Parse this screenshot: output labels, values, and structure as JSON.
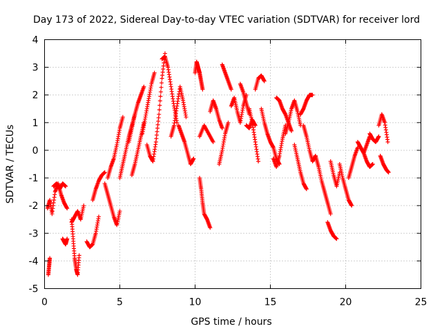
{
  "chart_data": {
    "type": "scatter",
    "title": "Day 173 of 2022, Sidereal Day-to-day VTEC variation (SDTVAR) for receiver lord",
    "xlabel": "GPS time / hours",
    "ylabel": "SDTVAR / TECUs",
    "xlim": [
      0,
      25
    ],
    "ylim": [
      -5,
      4
    ],
    "xticks": [
      "0",
      "5",
      "10",
      "15",
      "20",
      "25"
    ],
    "yticks": [
      "-5",
      "-4",
      "-3",
      "-2",
      "-1",
      "0",
      "1",
      "2",
      "3",
      "4"
    ],
    "grid": true,
    "marker": "plus",
    "series": [
      {
        "name": "SDTVAR",
        "color": "#ff0000",
        "segments": [
          {
            "x": [
              0.2,
              0.35,
              0.5,
              0.7,
              0.9,
              1.1,
              1.3,
              1.5
            ],
            "y": [
              -2.1,
              -1.8,
              -2.3,
              -1.5,
              -1.2,
              -1.6,
              -1.9,
              -2.1
            ]
          },
          {
            "x": [
              0.25,
              0.3,
              0.35
            ],
            "y": [
              -4.5,
              -4.2,
              -3.9
            ]
          },
          {
            "x": [
              0.6,
              0.8,
              1.0,
              1.2,
              1.4
            ],
            "y": [
              -1.3,
              -1.2,
              -1.4,
              -1.2,
              -1.3
            ]
          },
          {
            "x": [
              1.2,
              1.3,
              1.4,
              1.5
            ],
            "y": [
              -3.2,
              -3.3,
              -3.4,
              -3.2
            ]
          },
          {
            "x": [
              1.8,
              1.9,
              2.0,
              2.1,
              2.2,
              2.3
            ],
            "y": [
              -2.5,
              -3.2,
              -3.9,
              -4.3,
              -4.5,
              -3.8
            ]
          },
          {
            "x": [
              1.8,
              2.0,
              2.2,
              2.4,
              2.6
            ],
            "y": [
              -2.6,
              -2.4,
              -2.2,
              -2.5,
              -2.0
            ]
          },
          {
            "x": [
              2.8,
              3.0,
              3.2,
              3.4,
              3.6
            ],
            "y": [
              -3.3,
              -3.5,
              -3.4,
              -3.0,
              -2.4
            ]
          },
          {
            "x": [
              3.2,
              3.4,
              3.6,
              3.8,
              4.0
            ],
            "y": [
              -1.8,
              -1.4,
              -1.1,
              -0.9,
              -0.8
            ]
          },
          {
            "x": [
              4.0,
              4.2,
              4.4,
              4.6,
              4.8,
              5.0
            ],
            "y": [
              -1.2,
              -1.6,
              -2.0,
              -2.4,
              -2.7,
              -2.2
            ]
          },
          {
            "x": [
              4.2,
              4.4,
              4.6,
              4.8,
              5.0,
              5.2
            ],
            "y": [
              -1.0,
              -0.6,
              -0.3,
              0.2,
              0.8,
              1.2
            ]
          },
          {
            "x": [
              5.0,
              5.2,
              5.4,
              5.6,
              5.8,
              6.0
            ],
            "y": [
              -1.0,
              -0.5,
              0.0,
              0.5,
              0.9,
              1.3
            ]
          },
          {
            "x": [
              5.6,
              5.8,
              6.0,
              6.2,
              6.4,
              6.6
            ],
            "y": [
              0.3,
              0.8,
              1.3,
              1.7,
              2.0,
              2.3
            ]
          },
          {
            "x": [
              5.8,
              6.0,
              6.2,
              6.4,
              6.6
            ],
            "y": [
              -0.9,
              -0.5,
              0.0,
              0.5,
              1.0
            ]
          },
          {
            "x": [
              6.5,
              6.7,
              6.9,
              7.1,
              7.3
            ],
            "y": [
              0.6,
              1.2,
              1.8,
              2.4,
              2.8
            ]
          },
          {
            "x": [
              6.8,
              7.0,
              7.2,
              7.4,
              7.6,
              7.8,
              8.0
            ],
            "y": [
              0.2,
              -0.2,
              -0.4,
              0.3,
              1.3,
              2.6,
              3.5
            ]
          },
          {
            "x": [
              7.8,
              8.0,
              8.2,
              8.4,
              8.6,
              8.8
            ],
            "y": [
              3.3,
              3.4,
              3.0,
              2.3,
              1.6,
              1.0
            ]
          },
          {
            "x": [
              8.4,
              8.6,
              8.8,
              9.0,
              9.2,
              9.4
            ],
            "y": [
              0.5,
              0.9,
              1.6,
              2.3,
              1.8,
              1.2
            ]
          },
          {
            "x": [
              8.9,
              9.1,
              9.3,
              9.5,
              9.7,
              9.9
            ],
            "y": [
              0.9,
              0.6,
              0.3,
              -0.1,
              -0.5,
              -0.3
            ]
          },
          {
            "x": [
              10.0,
              10.1,
              10.2,
              10.3,
              10.4,
              10.5
            ],
            "y": [
              2.8,
              3.2,
              3.0,
              2.8,
              2.5,
              2.2
            ]
          },
          {
            "x": [
              10.3,
              10.4,
              10.5,
              10.6,
              10.8,
              11.0
            ],
            "y": [
              -1.0,
              -1.4,
              -1.9,
              -2.3,
              -2.5,
              -2.8
            ]
          },
          {
            "x": [
              10.3,
              10.6,
              10.9,
              11.2
            ],
            "y": [
              0.5,
              0.9,
              0.6,
              0.3
            ]
          },
          {
            "x": [
              11.0,
              11.2,
              11.4,
              11.6,
              11.8
            ],
            "y": [
              1.4,
              1.8,
              1.5,
              1.1,
              0.8
            ]
          },
          {
            "x": [
              11.6,
              11.8,
              12.0,
              12.2
            ],
            "y": [
              -0.5,
              0.0,
              0.6,
              1.0
            ]
          },
          {
            "x": [
              11.8,
              12.0,
              12.2,
              12.4
            ],
            "y": [
              3.1,
              2.8,
              2.5,
              2.2
            ]
          },
          {
            "x": [
              12.4,
              12.6,
              12.8,
              13.0,
              13.2,
              13.4
            ],
            "y": [
              1.6,
              1.9,
              1.4,
              1.0,
              1.6,
              2.0
            ]
          },
          {
            "x": [
              13.0,
              13.2,
              13.4,
              13.6
            ],
            "y": [
              2.4,
              2.1,
              1.7,
              1.3
            ]
          },
          {
            "x": [
              13.6,
              13.8,
              14.0,
              14.2
            ],
            "y": [
              1.5,
              1.0,
              0.3,
              -0.4
            ]
          },
          {
            "x": [
              13.4,
              13.6,
              13.8,
              14.0
            ],
            "y": [
              0.9,
              0.8,
              1.1,
              0.9
            ]
          },
          {
            "x": [
              14.0,
              14.2,
              14.4,
              14.6
            ],
            "y": [
              2.2,
              2.6,
              2.7,
              2.5
            ]
          },
          {
            "x": [
              14.4,
              14.6,
              14.8,
              15.0,
              15.2,
              15.4,
              15.6
            ],
            "y": [
              1.5,
              1.0,
              0.6,
              0.3,
              0.1,
              -0.3,
              -0.5
            ]
          },
          {
            "x": [
              15.2,
              15.4,
              15.6,
              15.8,
              16.0
            ],
            "y": [
              -0.3,
              -0.6,
              -0.2,
              0.4,
              0.9
            ]
          },
          {
            "x": [
              15.4,
              15.6,
              15.8,
              16.0,
              16.2,
              16.4
            ],
            "y": [
              1.9,
              1.8,
              1.5,
              1.3,
              1.0,
              0.7
            ]
          },
          {
            "x": [
              16.0,
              16.2,
              16.4,
              16.6,
              16.8,
              17.0
            ],
            "y": [
              0.6,
              1.0,
              1.5,
              1.8,
              1.4,
              0.9
            ]
          },
          {
            "x": [
              16.6,
              16.8,
              17.0,
              17.2,
              17.4
            ],
            "y": [
              0.2,
              -0.3,
              -0.8,
              -1.2,
              -1.4
            ]
          },
          {
            "x": [
              17.0,
              17.2,
              17.4,
              17.6,
              17.8
            ],
            "y": [
              1.3,
              1.5,
              1.8,
              2.0,
              2.0
            ]
          },
          {
            "x": [
              17.2,
              17.4,
              17.6,
              17.8,
              18.0
            ],
            "y": [
              0.9,
              0.5,
              0.0,
              -0.4,
              -0.2
            ]
          },
          {
            "x": [
              18.0,
              18.2,
              18.4,
              18.6,
              18.8,
              19.0
            ],
            "y": [
              -0.2,
              -0.6,
              -1.1,
              -1.5,
              -1.9,
              -2.3
            ]
          },
          {
            "x": [
              18.8,
              19.0,
              19.2,
              19.4
            ],
            "y": [
              -2.6,
              -2.9,
              -3.1,
              -3.2
            ]
          },
          {
            "x": [
              19.0,
              19.2,
              19.4,
              19.6
            ],
            "y": [
              -0.4,
              -0.9,
              -1.3,
              -0.8
            ]
          },
          {
            "x": [
              19.6,
              19.8,
              20.0,
              20.2,
              20.4
            ],
            "y": [
              -0.5,
              -1.0,
              -1.4,
              -1.8,
              -2.0
            ]
          },
          {
            "x": [
              20.2,
              20.4,
              20.6,
              20.8
            ],
            "y": [
              -1.0,
              -0.6,
              -0.2,
              0.1
            ]
          },
          {
            "x": [
              20.8,
              21.0,
              21.2,
              21.4,
              21.6
            ],
            "y": [
              0.3,
              0.1,
              -0.1,
              0.2,
              0.5
            ]
          },
          {
            "x": [
              21.2,
              21.4,
              21.6,
              21.8
            ],
            "y": [
              -0.1,
              -0.4,
              -0.6,
              -0.5
            ]
          },
          {
            "x": [
              21.6,
              21.8,
              22.0,
              22.2
            ],
            "y": [
              0.6,
              0.4,
              0.3,
              0.5
            ]
          },
          {
            "x": [
              22.2,
              22.4,
              22.6,
              22.8
            ],
            "y": [
              0.9,
              1.3,
              1.0,
              0.3
            ]
          },
          {
            "x": [
              22.3,
              22.5,
              22.7,
              22.85
            ],
            "y": [
              -0.2,
              -0.5,
              -0.7,
              -0.8
            ]
          }
        ]
      }
    ]
  }
}
